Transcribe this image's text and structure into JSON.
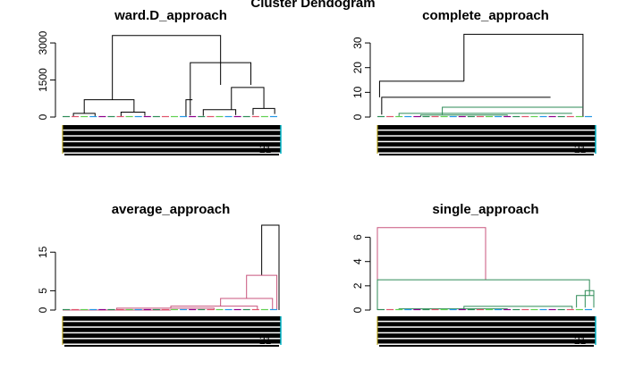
{
  "figure": {
    "main_title": "Cluster Dendogram"
  },
  "chart_data": [
    {
      "type": "dendrogram",
      "title": "ward.D_approach",
      "yticks": [
        0,
        1500,
        3000
      ],
      "ylim": [
        0,
        3400
      ],
      "leaf_band_label": "21",
      "colors": [
        "#000000",
        "#2E8B57",
        "#DF536B",
        "#61D04F",
        "#2297E6",
        "#8B008B"
      ],
      "links": [
        {
          "x1": 0.23,
          "x2": 0.73,
          "y1": 700,
          "y2": 1300,
          "top": 3300,
          "color": "#000000"
        },
        {
          "x1": 0.1,
          "x2": 0.33,
          "y1": 150,
          "y2": 200,
          "top": 700,
          "color": "#000000"
        },
        {
          "x1": 0.59,
          "x2": 0.87,
          "y1": 70,
          "y2": 1300,
          "top": 2200,
          "color": "#000000"
        },
        {
          "x1": 0.78,
          "x2": 0.93,
          "y1": 300,
          "y2": 350,
          "top": 1200,
          "color": "#000000"
        },
        {
          "x1": 0.57,
          "x2": 0.6,
          "y1": 0,
          "y2": 700,
          "top": 700,
          "color": "#000000"
        },
        {
          "x1": 0.65,
          "x2": 0.8,
          "y1": 50,
          "y2": 80,
          "top": 300,
          "color": "#000000"
        },
        {
          "x1": 0.88,
          "x2": 0.98,
          "y1": 80,
          "y2": 120,
          "top": 350,
          "color": "#000000"
        },
        {
          "x1": 0.05,
          "x2": 0.15,
          "y1": 20,
          "y2": 40,
          "top": 150,
          "color": "#000000"
        },
        {
          "x1": 0.27,
          "x2": 0.38,
          "y1": 30,
          "y2": 50,
          "top": 200,
          "color": "#000000"
        }
      ]
    },
    {
      "type": "dendrogram",
      "title": "complete_approach",
      "yticks": [
        0,
        10,
        20,
        30
      ],
      "ylim": [
        0,
        34
      ],
      "leaf_band_label": "21",
      "colors": [
        "#000000",
        "#2E8B57",
        "#DF536B",
        "#61D04F",
        "#2297E6",
        "#8B008B"
      ],
      "links": [
        {
          "x1": 0.4,
          "x2": 0.95,
          "y1": 14.5,
          "y2": 0,
          "top": 33.5,
          "color": "#000000"
        },
        {
          "x1": 0.01,
          "x2": 0.4,
          "y1": 8,
          "y2": 14.5,
          "top": 14.5,
          "color": "#000000"
        },
        {
          "x1": 0.02,
          "x2": 0.8,
          "y1": 1,
          "y2": 8,
          "top": 8,
          "color": "#000000"
        },
        {
          "x1": 0.3,
          "x2": 0.95,
          "y1": 1,
          "y2": 4,
          "top": 4,
          "color": "#2E8B57"
        },
        {
          "x1": 0.1,
          "x2": 0.9,
          "y1": 0.3,
          "y2": 1.5,
          "top": 1.5,
          "color": "#2E8B57"
        },
        {
          "x1": 0.2,
          "x2": 0.6,
          "y1": 0,
          "y2": 0.5,
          "top": 0.8,
          "color": "#2E8B57"
        }
      ]
    },
    {
      "type": "dendrogram",
      "title": "average_approach",
      "yticks": [
        0,
        5,
        15
      ],
      "ylim": [
        0,
        22
      ],
      "leaf_band_label": "21",
      "colors": [
        "#000000",
        "#2E8B57",
        "#DF536B",
        "#61D04F",
        "#2297E6",
        "#8B008B"
      ],
      "links": [
        {
          "x1": 0.92,
          "x2": 1.0,
          "y1": 9,
          "y2": 0,
          "top": 22,
          "color": "#000000"
        },
        {
          "x1": 0.85,
          "x2": 0.99,
          "y1": 3,
          "y2": 0,
          "top": 9,
          "color": "#C8557D"
        },
        {
          "x1": 0.73,
          "x2": 0.97,
          "y1": 1,
          "y2": 0,
          "top": 3,
          "color": "#C8557D"
        },
        {
          "x1": 0.5,
          "x2": 0.9,
          "y1": 0.5,
          "y2": 0,
          "top": 1,
          "color": "#C8557D"
        },
        {
          "x1": 0.25,
          "x2": 0.7,
          "y1": 0,
          "y2": 0,
          "top": 0.5,
          "color": "#C8557D"
        },
        {
          "x1": 0.0,
          "x2": 0.5,
          "y1": 0,
          "y2": 0,
          "top": 0,
          "color": "#C8557D"
        }
      ]
    },
    {
      "type": "dendrogram",
      "title": "single_approach",
      "yticks": [
        0,
        2,
        4,
        6
      ],
      "ylim": [
        0,
        7
      ],
      "leaf_band_label": "21",
      "colors": [
        "#000000",
        "#2E8B57",
        "#DF536B",
        "#61D04F",
        "#2297E6",
        "#8B008B"
      ],
      "links": [
        {
          "x1": 0.0,
          "x2": 0.5,
          "y1": 0,
          "y2": 2.5,
          "top": 6.8,
          "color": "#C8557D"
        },
        {
          "x1": 0.0,
          "x2": 0.98,
          "y1": 0,
          "y2": 1.2,
          "top": 2.5,
          "color": "#2E8B57"
        },
        {
          "x1": 0.92,
          "x2": 1.0,
          "y1": 0.2,
          "y2": 1.6,
          "top": 1.2,
          "color": "#2E8B57"
        },
        {
          "x1": 0.96,
          "x2": 1.0,
          "y1": 0.2,
          "y2": 0.2,
          "top": 1.6,
          "color": "#2E8B57"
        },
        {
          "x1": 0.4,
          "x2": 0.9,
          "y1": 0,
          "y2": 0.1,
          "top": 0.3,
          "color": "#2E8B57"
        },
        {
          "x1": 0.1,
          "x2": 0.6,
          "y1": 0,
          "y2": 0,
          "top": 0.1,
          "color": "#2E8B57"
        }
      ]
    }
  ]
}
